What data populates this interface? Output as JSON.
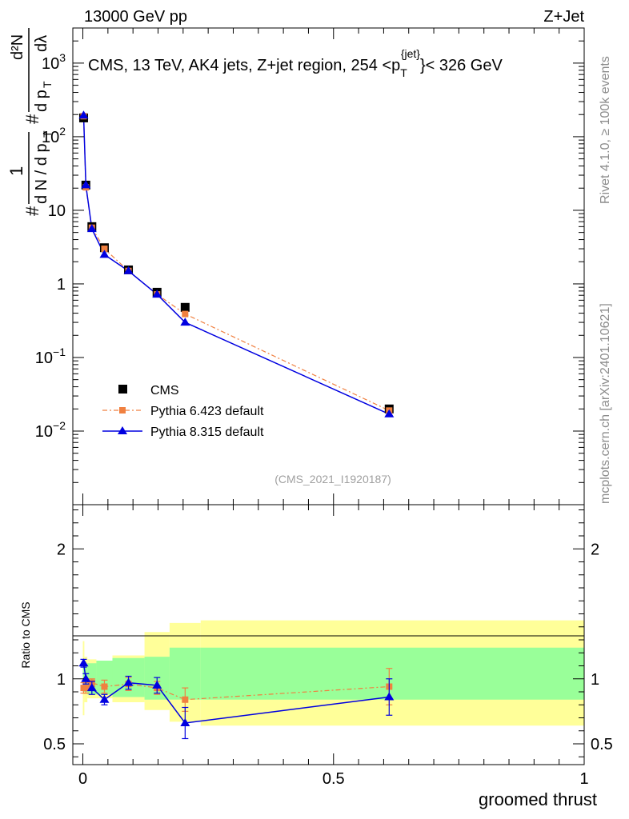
{
  "header": {
    "left": "13000 GeV pp",
    "right": "Z+Jet"
  },
  "colors": {
    "cms": "#000000",
    "py6": "#f08040",
    "py8": "#0000e0",
    "band_stat": "#99ff99",
    "band_tot": "#ffff99",
    "side_text": "#8c8c8c"
  },
  "legend": [
    {
      "label": "CMS",
      "key": "cms"
    },
    {
      "label": "Pythia 6.423 default",
      "key": "py6"
    },
    {
      "label": "Pythia 8.315 default",
      "key": "py8"
    }
  ],
  "side_labels": {
    "rivet": "Rivet 4.1.0, ≥ 100k events",
    "mcplots": "mcplots.cern.ch [arXiv:2401.10621]"
  },
  "analysis_id": "(CMS_2021_I1920187)",
  "chart_data": [
    {
      "type": "scatter",
      "scale": "log",
      "title_main": "CMS, 13 TeV, AK4 jets, Z+jet region, 254 <",
      "title_p": "p",
      "title_sub": "T",
      "title_sup": "{jet}",
      "title_tail": "}< 326 GeV",
      "ylabel_num_frac": "#",
      "ylabel": "1 / (dN/dpT) d²N/(dpT dλ)",
      "ylabel_parts": [
        "#",
        "1",
        "d N / d p",
        "T",
        "#",
        "d p",
        "T",
        "d²N",
        "dλ"
      ],
      "xlim": [
        -0.02,
        1.0
      ],
      "ylim": [
        0.001,
        3000
      ],
      "ytick_labels": [
        {
          "value": 0.01,
          "base": "10",
          "exp": "−2"
        },
        {
          "value": 0.1,
          "base": "10",
          "exp": "−1"
        },
        {
          "value": 1,
          "base": "1",
          "exp": ""
        },
        {
          "value": 10,
          "base": "10",
          "exp": ""
        },
        {
          "value": 100,
          "base": "10",
          "exp": "2"
        },
        {
          "value": 1000,
          "base": "10",
          "exp": "3"
        }
      ],
      "series": [
        {
          "name": "CMS",
          "key": "cms",
          "x": [
            0.0015,
            0.006,
            0.018,
            0.043,
            0.091,
            0.148,
            0.204,
            0.611
          ],
          "y": [
            180,
            22,
            6.0,
            3.1,
            1.55,
            0.77,
            0.48,
            0.02
          ]
        },
        {
          "name": "Pythia 6.423 default",
          "key": "py6",
          "x": [
            0.0015,
            0.006,
            0.018,
            0.043,
            0.091,
            0.148,
            0.204,
            0.611
          ],
          "y": [
            190,
            20.5,
            5.8,
            3.0,
            1.5,
            0.72,
            0.39,
            0.019
          ]
        },
        {
          "name": "Pythia 8.315 default",
          "key": "py8",
          "x": [
            0.0015,
            0.006,
            0.018,
            0.043,
            0.091,
            0.148,
            0.204,
            0.611
          ],
          "y": [
            195,
            22,
            5.6,
            2.5,
            1.5,
            0.72,
            0.3,
            0.017
          ]
        }
      ]
    },
    {
      "type": "scatter",
      "scale": "linear",
      "ylabel": "Ratio to CMS",
      "xlabel": "groomed thrust",
      "xlim": [
        -0.02,
        1.0
      ],
      "ylim": [
        0.34,
        2.34
      ],
      "ytick_labels": [
        {
          "value": 0.5,
          "label": "0.5"
        },
        {
          "value": 1,
          "label": "1"
        },
        {
          "value": 2,
          "label": "2"
        }
      ],
      "xtick_labels": [
        {
          "value": 0,
          "label": "0"
        },
        {
          "value": 0.5,
          "label": "0.5"
        },
        {
          "value": 1,
          "label": "1"
        }
      ],
      "bands": {
        "edges": [
          0,
          0.003,
          0.009,
          0.027,
          0.059,
          0.123,
          0.173,
          0.235,
          1.0
        ],
        "stat_lo": [
          0.9,
          0.9,
          0.88,
          0.88,
          0.86,
          0.84,
          0.84,
          0.84
        ],
        "stat_hi": [
          1.1,
          1.1,
          1.12,
          1.14,
          1.16,
          1.17,
          1.24,
          1.24
        ],
        "tot_lo": [
          0.72,
          0.82,
          0.85,
          0.85,
          0.82,
          0.76,
          0.67,
          0.64
        ],
        "tot_hi": [
          1.29,
          1.17,
          1.15,
          1.14,
          1.18,
          1.36,
          1.43,
          1.45
        ]
      },
      "series": [
        {
          "name": "Pythia 6.423 default",
          "key": "py6",
          "x": [
            0.0015,
            0.006,
            0.018,
            0.043,
            0.091,
            0.148,
            0.204,
            0.611
          ],
          "y": [
            0.93,
            0.93,
            0.97,
            0.94,
            0.96,
            0.93,
            0.84,
            0.94
          ],
          "err": [
            0.04,
            0.04,
            0.03,
            0.05,
            0.05,
            0.05,
            0.09,
            0.14
          ]
        },
        {
          "name": "Pythia 8.315 default",
          "key": "py8",
          "x": [
            0.0015,
            0.006,
            0.018,
            0.043,
            0.091,
            0.148,
            0.204,
            0.611
          ],
          "y": [
            1.12,
            1.0,
            0.93,
            0.84,
            0.97,
            0.95,
            0.66,
            0.86
          ],
          "err": [
            0.03,
            0.04,
            0.05,
            0.04,
            0.05,
            0.06,
            0.12,
            0.14
          ]
        }
      ]
    }
  ]
}
